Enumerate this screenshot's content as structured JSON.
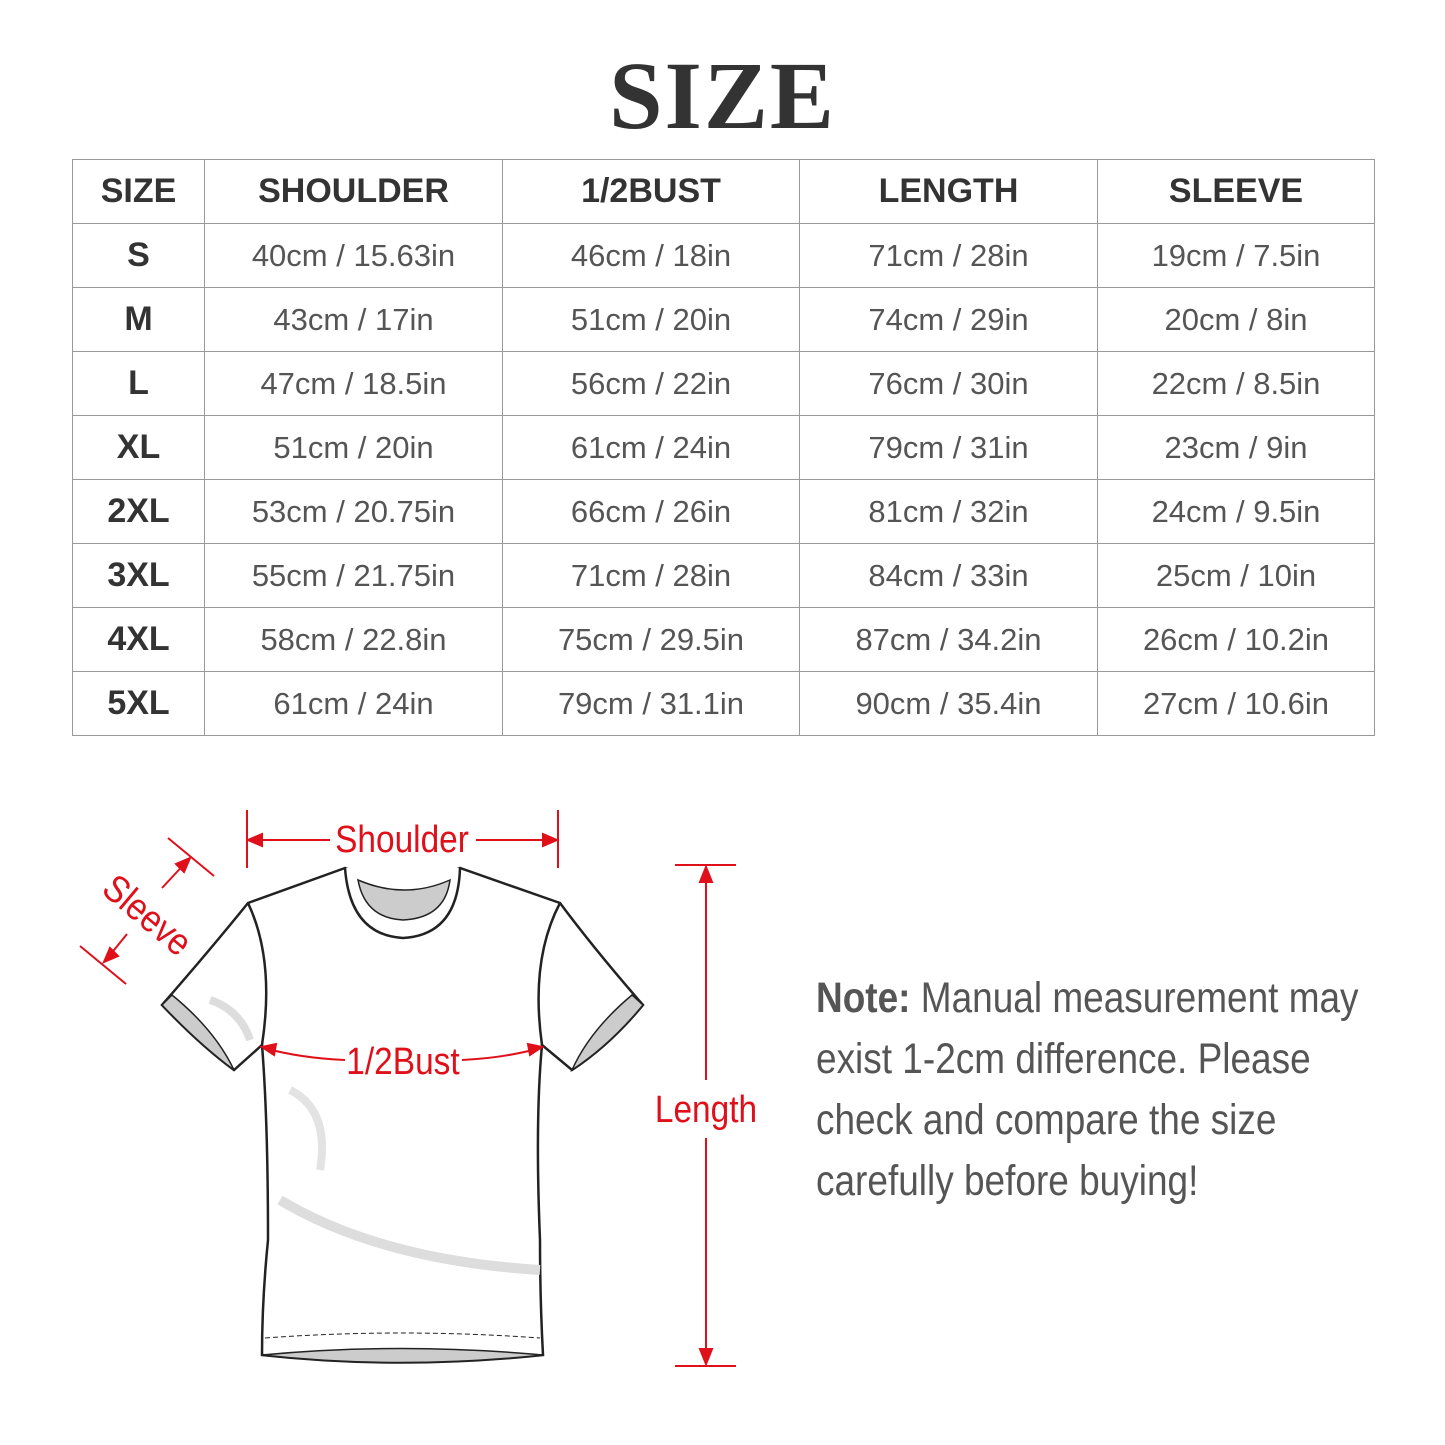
{
  "title": "SIZE",
  "table": {
    "headers": [
      "SIZE",
      "SHOULDER",
      "1/2BUST",
      "LENGTH",
      "SLEEVE"
    ],
    "rows": [
      [
        "S",
        "40cm / 15.63in",
        "46cm / 18in",
        "71cm / 28in",
        "19cm / 7.5in"
      ],
      [
        "M",
        "43cm / 17in",
        "51cm / 20in",
        "74cm / 29in",
        "20cm / 8in"
      ],
      [
        "L",
        "47cm / 18.5in",
        "56cm / 22in",
        "76cm / 30in",
        "22cm / 8.5in"
      ],
      [
        "XL",
        "51cm / 20in",
        "61cm / 24in",
        "79cm / 31in",
        "23cm / 9in"
      ],
      [
        "2XL",
        "53cm / 20.75in",
        "66cm / 26in",
        "81cm / 32in",
        "24cm / 9.5in"
      ],
      [
        "3XL",
        "55cm / 21.75in",
        "71cm / 28in",
        "84cm / 33in",
        "25cm / 10in"
      ],
      [
        "4XL",
        "58cm / 22.8in",
        "75cm / 29.5in",
        "87cm / 34.2in",
        "26cm / 10.2in"
      ],
      [
        "5XL",
        "61cm / 24in",
        "79cm / 31.1in",
        "90cm / 35.4in",
        "27cm / 10.6in"
      ]
    ]
  },
  "diagram": {
    "labels": {
      "shoulder": "Shoulder",
      "sleeve": "Sleeve",
      "bust": "1/2Bust",
      "length": "Length"
    },
    "accent_color": "#e0101a"
  },
  "note": {
    "prefix": "Note:",
    "text": " Manual measurement may exist 1-2cm difference. Please check and compare the size carefully before buying!"
  }
}
